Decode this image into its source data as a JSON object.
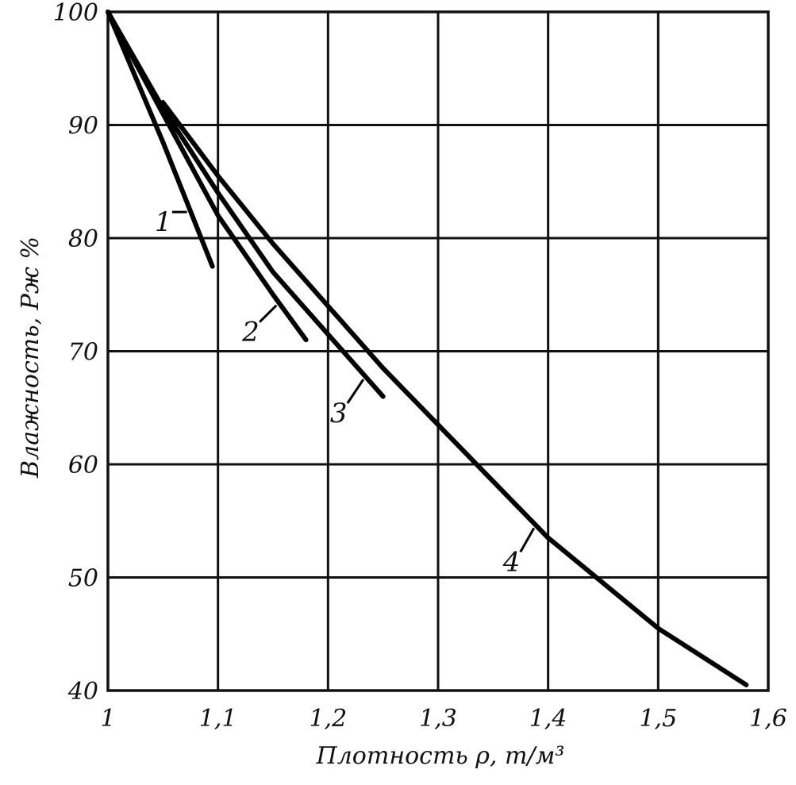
{
  "chart_data": {
    "type": "line",
    "xlabel": "Плотность ρ, т/м³",
    "ylabel": "Влажность, Рж %",
    "xlim": [
      1.0,
      1.6
    ],
    "ylim": [
      40,
      100
    ],
    "x_ticks": [
      "1",
      "1,1",
      "1,2",
      "1,3",
      "1,4",
      "1,5",
      "1,6"
    ],
    "y_ticks": [
      "40",
      "50",
      "60",
      "70",
      "80",
      "90",
      "100"
    ],
    "grid": true,
    "series": [
      {
        "name": "1",
        "x": [
          1.0,
          1.05,
          1.095
        ],
        "y": [
          100,
          88.5,
          77.5
        ]
      },
      {
        "name": "2",
        "x": [
          1.0,
          1.05,
          1.1,
          1.15,
          1.18
        ],
        "y": [
          100,
          91,
          82,
          75,
          71
        ]
      },
      {
        "name": "3",
        "x": [
          1.0,
          1.05,
          1.1,
          1.15,
          1.2,
          1.25
        ],
        "y": [
          100,
          91.5,
          84,
          77,
          71.5,
          66
        ]
      },
      {
        "name": "4",
        "x": [
          1.05,
          1.1,
          1.15,
          1.2,
          1.25,
          1.3,
          1.35,
          1.4,
          1.45,
          1.5,
          1.58
        ],
        "y": [
          92,
          85.5,
          79.5,
          74,
          68.5,
          63.5,
          58.5,
          53.5,
          49.5,
          45.5,
          40.5
        ]
      }
    ]
  }
}
